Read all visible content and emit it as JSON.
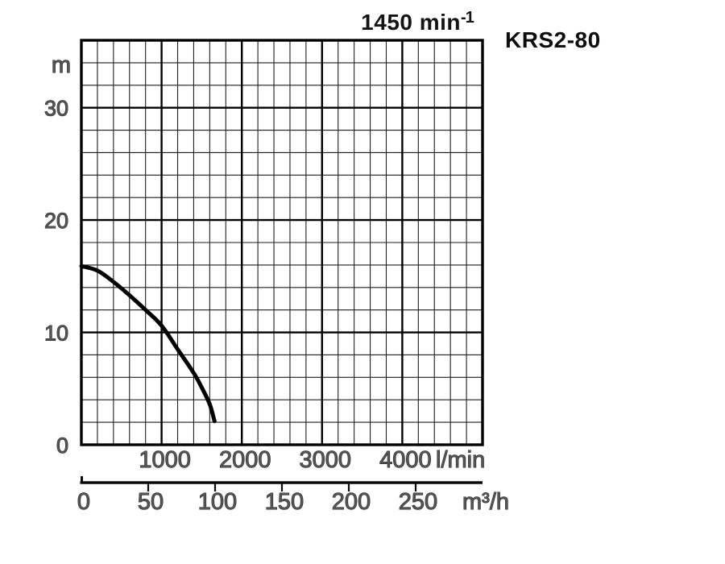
{
  "header": {
    "speed_text": "1450 min",
    "speed_exponent": "-1",
    "speed_display": "1450 min⁻¹",
    "model": "KRS2-80"
  },
  "colors": {
    "background": "#ffffff",
    "curve": "#000000",
    "grid_minor": "#1e1e1e",
    "grid_major": "#000000",
    "border": "#000000",
    "secondary_axis": "#0a0a0a"
  },
  "chart_data": {
    "type": "line",
    "title": "KRS2-80",
    "subtitle": "1450 min⁻¹",
    "grid": "minor and major, on",
    "x_axis": {
      "unit": "l/min",
      "min": 0,
      "max": 5000,
      "minor_step": 200,
      "major_step": 1000,
      "labeled_ticks": [
        "1000",
        "2000",
        "3000",
        "4000"
      ]
    },
    "x_axis_secondary": {
      "unit": "m³/h",
      "min": 0,
      "max": 300,
      "tick_step": 50,
      "labeled_ticks": [
        "0",
        "50",
        "100",
        "150",
        "200",
        "250"
      ],
      "l_min_per_unit": 16.6667
    },
    "y_axis": {
      "unit": "m",
      "min": 0,
      "max": 36,
      "minor_step": 2,
      "major_step": 10,
      "labeled_ticks": [
        "30",
        "20",
        "10",
        "0"
      ],
      "labeled_tick_values": [
        30,
        20,
        10,
        0
      ]
    },
    "series": [
      {
        "name": "KRS2-80",
        "rotation_speed": "1450 min⁻¹",
        "x_unit": "l/min",
        "y_unit": "m",
        "points": [
          [
            0,
            15.9
          ],
          [
            200,
            15.5
          ],
          [
            400,
            14.5
          ],
          [
            600,
            13.3
          ],
          [
            800,
            12.0
          ],
          [
            1000,
            10.6
          ],
          [
            1200,
            8.5
          ],
          [
            1400,
            6.4
          ],
          [
            1500,
            5.1
          ],
          [
            1600,
            3.6
          ],
          [
            1660,
            2.1
          ]
        ]
      }
    ]
  }
}
